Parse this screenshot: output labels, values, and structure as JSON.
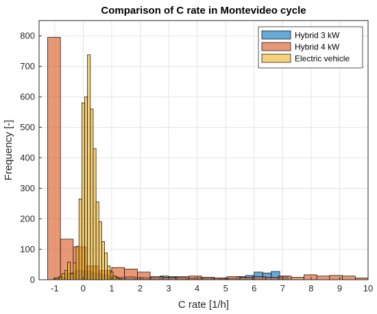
{
  "chart_data": {
    "type": "histogram",
    "title": "Comparison of C rate in Montevideo cycle",
    "xlabel": "C rate [1/h]",
    "ylabel": "Frequency [-]",
    "xlim": [
      -1.55,
      10
    ],
    "ylim": [
      0,
      850
    ],
    "xticks": [
      -1,
      0,
      1,
      2,
      3,
      4,
      5,
      6,
      7,
      8,
      9,
      10
    ],
    "yticks": [
      0,
      100,
      200,
      300,
      400,
      500,
      600,
      700,
      800
    ],
    "grid": true,
    "legend_position": "top-right",
    "series": [
      {
        "name": "Hybrid 3 kW",
        "color": "#0072BD",
        "bins": [
          {
            "x0": -0.9,
            "x1": -0.6,
            "value": 8
          },
          {
            "x0": -0.6,
            "x1": -0.3,
            "value": 22
          },
          {
            "x0": -0.3,
            "x1": 0.0,
            "value": 30
          },
          {
            "x0": 0.0,
            "x1": 0.3,
            "value": 28
          },
          {
            "x0": 0.3,
            "x1": 0.6,
            "value": 22
          },
          {
            "x0": 0.6,
            "x1": 0.9,
            "value": 16
          },
          {
            "x0": 0.9,
            "x1": 1.2,
            "value": 10
          },
          {
            "x0": 1.2,
            "x1": 1.5,
            "value": 8
          },
          {
            "x0": 1.5,
            "x1": 1.8,
            "value": 10
          },
          {
            "x0": 1.8,
            "x1": 2.1,
            "value": 8
          },
          {
            "x0": 2.1,
            "x1": 2.4,
            "value": 7
          },
          {
            "x0": 2.4,
            "x1": 2.7,
            "value": 9
          },
          {
            "x0": 2.7,
            "x1": 3.0,
            "value": 12
          },
          {
            "x0": 3.0,
            "x1": 3.3,
            "value": 10
          },
          {
            "x0": 3.3,
            "x1": 3.6,
            "value": 8
          },
          {
            "x0": 3.6,
            "x1": 3.9,
            "value": 6
          },
          {
            "x0": 3.9,
            "x1": 4.2,
            "value": 7
          },
          {
            "x0": 4.2,
            "x1": 4.5,
            "value": 5
          },
          {
            "x0": 4.5,
            "x1": 4.8,
            "value": 6
          },
          {
            "x0": 4.8,
            "x1": 5.1,
            "value": 4
          },
          {
            "x0": 5.1,
            "x1": 5.4,
            "value": 5
          },
          {
            "x0": 5.4,
            "x1": 5.7,
            "value": 10
          },
          {
            "x0": 5.7,
            "x1": 6.0,
            "value": 14
          },
          {
            "x0": 6.0,
            "x1": 6.3,
            "value": 25
          },
          {
            "x0": 6.3,
            "x1": 6.6,
            "value": 22
          },
          {
            "x0": 6.6,
            "x1": 6.9,
            "value": 27
          },
          {
            "x0": 6.9,
            "x1": 7.2,
            "value": 10
          }
        ]
      },
      {
        "name": "Hybrid 4 kW",
        "color": "#D95319",
        "bins": [
          {
            "x0": -1.25,
            "x1": -0.8,
            "value": 795
          },
          {
            "x0": -0.8,
            "x1": -0.35,
            "value": 133
          },
          {
            "x0": -0.35,
            "x1": 0.1,
            "value": 108
          },
          {
            "x0": 0.1,
            "x1": 0.55,
            "value": 45
          },
          {
            "x0": 0.55,
            "x1": 1.0,
            "value": 30
          },
          {
            "x0": 1.0,
            "x1": 1.45,
            "value": 40
          },
          {
            "x0": 1.45,
            "x1": 1.9,
            "value": 35
          },
          {
            "x0": 1.9,
            "x1": 2.35,
            "value": 25
          },
          {
            "x0": 2.35,
            "x1": 2.8,
            "value": 10
          },
          {
            "x0": 2.8,
            "x1": 3.25,
            "value": 8
          },
          {
            "x0": 3.25,
            "x1": 3.7,
            "value": 10
          },
          {
            "x0": 3.7,
            "x1": 4.15,
            "value": 12
          },
          {
            "x0": 4.15,
            "x1": 4.6,
            "value": 8
          },
          {
            "x0": 4.6,
            "x1": 5.05,
            "value": 6
          },
          {
            "x0": 5.05,
            "x1": 5.5,
            "value": 10
          },
          {
            "x0": 5.5,
            "x1": 5.95,
            "value": 8
          },
          {
            "x0": 5.95,
            "x1": 6.4,
            "value": 10
          },
          {
            "x0": 6.4,
            "x1": 6.85,
            "value": 8
          },
          {
            "x0": 6.85,
            "x1": 7.3,
            "value": 12
          },
          {
            "x0": 7.3,
            "x1": 7.75,
            "value": 8
          },
          {
            "x0": 7.75,
            "x1": 8.2,
            "value": 16
          },
          {
            "x0": 8.2,
            "x1": 8.65,
            "value": 12
          },
          {
            "x0": 8.65,
            "x1": 9.1,
            "value": 14
          },
          {
            "x0": 9.1,
            "x1": 9.55,
            "value": 12
          },
          {
            "x0": 9.55,
            "x1": 10.0,
            "value": 6
          }
        ]
      },
      {
        "name": "Electric vehicle",
        "color": "#EDB120",
        "bins": [
          {
            "x0": -1.05,
            "x1": -0.95,
            "value": 3
          },
          {
            "x0": -0.95,
            "x1": -0.85,
            "value": 5
          },
          {
            "x0": -0.85,
            "x1": -0.75,
            "value": 10
          },
          {
            "x0": -0.75,
            "x1": -0.65,
            "value": 20
          },
          {
            "x0": -0.65,
            "x1": -0.55,
            "value": 30
          },
          {
            "x0": -0.55,
            "x1": -0.45,
            "value": 58
          },
          {
            "x0": -0.45,
            "x1": -0.35,
            "value": 20
          },
          {
            "x0": -0.35,
            "x1": -0.25,
            "value": 55
          },
          {
            "x0": -0.25,
            "x1": -0.15,
            "value": 110
          },
          {
            "x0": -0.15,
            "x1": -0.05,
            "value": 265
          },
          {
            "x0": -0.05,
            "x1": 0.05,
            "value": 580
          },
          {
            "x0": 0.05,
            "x1": 0.15,
            "value": 600
          },
          {
            "x0": 0.15,
            "x1": 0.25,
            "value": 738
          },
          {
            "x0": 0.25,
            "x1": 0.35,
            "value": 560
          },
          {
            "x0": 0.35,
            "x1": 0.45,
            "value": 430
          },
          {
            "x0": 0.45,
            "x1": 0.55,
            "value": 255
          },
          {
            "x0": 0.55,
            "x1": 0.65,
            "value": 190
          },
          {
            "x0": 0.65,
            "x1": 0.75,
            "value": 125
          },
          {
            "x0": 0.75,
            "x1": 0.85,
            "value": 88
          },
          {
            "x0": 0.85,
            "x1": 0.95,
            "value": 45
          },
          {
            "x0": 0.95,
            "x1": 1.05,
            "value": 25
          },
          {
            "x0": 1.05,
            "x1": 1.15,
            "value": 12
          },
          {
            "x0": 1.15,
            "x1": 1.25,
            "value": 6
          },
          {
            "x0": 1.25,
            "x1": 1.35,
            "value": 3
          }
        ]
      }
    ]
  }
}
